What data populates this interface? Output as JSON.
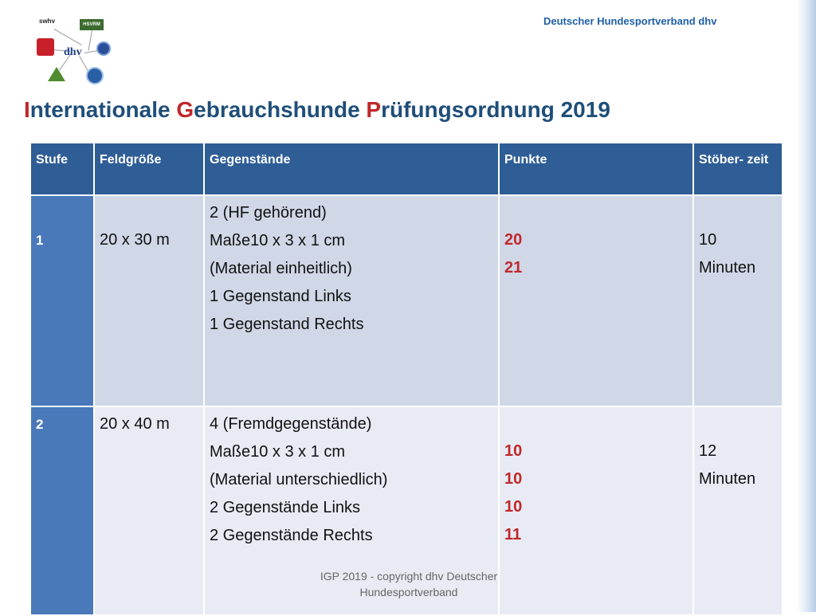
{
  "header": {
    "org_name": "Deutscher Hundesportverband dhv",
    "logos": {
      "swhv": "swhv",
      "hsvrm": "HSVRM",
      "dhv": "dhv"
    }
  },
  "title": {
    "parts": [
      "I",
      "nternationale ",
      "G",
      "ebrauchshunde ",
      "P",
      "rüfungsordnung 2019"
    ],
    "full": "Internationale Gebrauchshunde Prüfungsordnung 2019"
  },
  "table": {
    "headers": [
      "Stufe",
      "Feldgröße",
      "Gegenstände",
      "Punkte",
      "Stöber-zeit"
    ],
    "header_stoeber_lines": [
      "Stöber-",
      "zeit"
    ],
    "rows": [
      {
        "stufe": "1",
        "feld": "20 x 30 m",
        "gegenstaende": [
          "2 (HF gehörend)",
          "Maße10 x 3 x 1 cm",
          "(Material einheitlich)",
          "1 Gegenstand Links",
          "1 Gegenstand Rechts"
        ],
        "punkte": [
          "20",
          "21"
        ],
        "zeit": [
          "10",
          "Minuten"
        ]
      },
      {
        "stufe": "2",
        "feld": "20 x 40 m",
        "gegenstaende": [
          "4 (Fremdgegenstände)",
          "Maße10 x 3 x 1 cm",
          "(Material unterschiedlich)",
          "2 Gegenstände Links",
          "2 Gegenstände Rechts"
        ],
        "punkte": [
          "10",
          "10",
          "10",
          "11"
        ],
        "zeit": [
          "12",
          "Minuten"
        ]
      }
    ]
  },
  "footer": {
    "line1": "IGP 2019 -  copyright dhv Deutscher",
    "line2": "Hundesportverband"
  },
  "colors": {
    "title_blue": "#1f4e79",
    "accent_red": "#c0282a",
    "header_blue": "#2f5d96",
    "stufe_blue": "#4a79ba",
    "row1_bg": "#d0d7e7",
    "row2_bg": "#e8ebf4",
    "org_blue": "#1f5fa8"
  }
}
